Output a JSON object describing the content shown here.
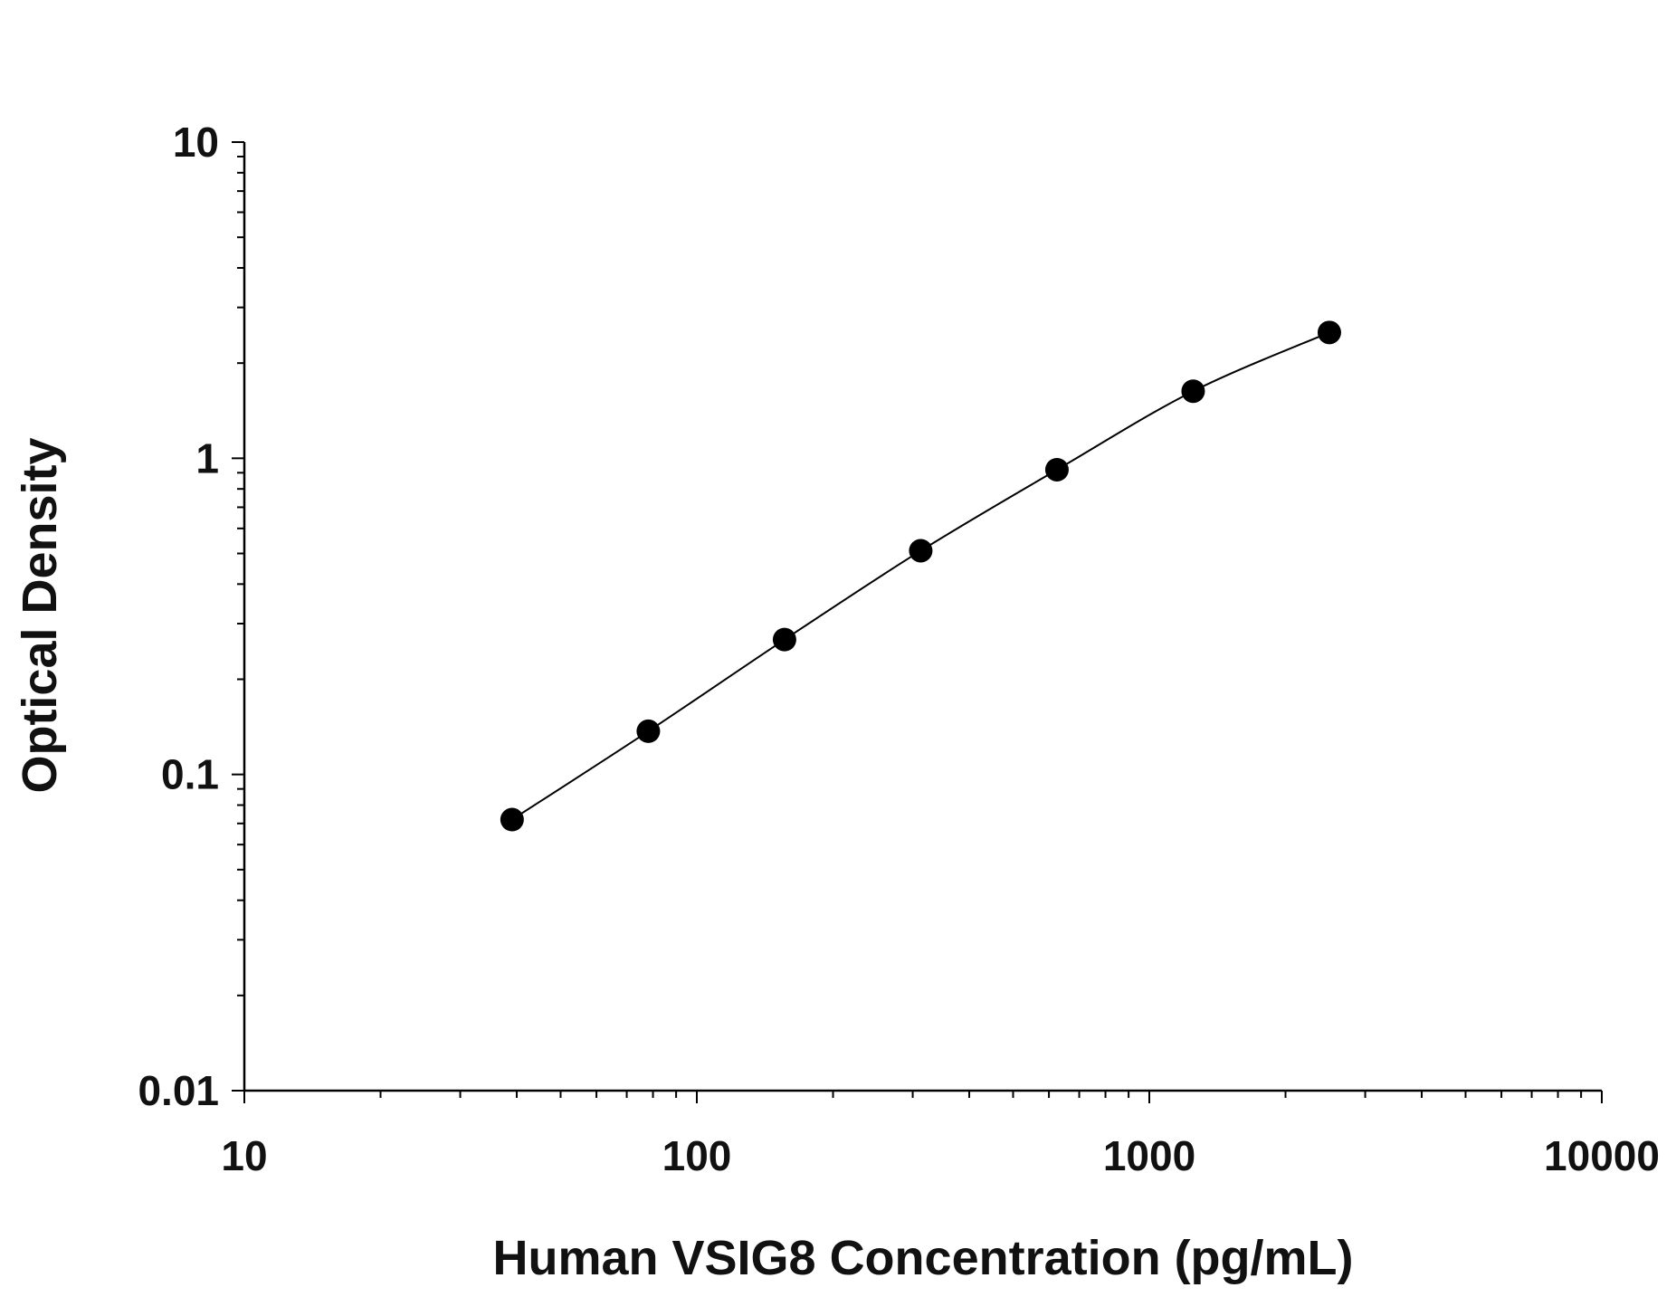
{
  "chart_data": {
    "type": "scatter",
    "title": "",
    "xlabel": "Human VSIG8 Concentration (pg/mL)",
    "ylabel": "Optical Density",
    "xscale": "log",
    "yscale": "log",
    "xlim": [
      10,
      10000
    ],
    "ylim": [
      0.01,
      10
    ],
    "grid": false,
    "x_ticks": [
      "10",
      "100",
      "1000",
      "10000"
    ],
    "y_ticks": [
      "0.01",
      "0.1",
      "1",
      "10"
    ],
    "series": [
      {
        "x": [
          39.06,
          78.13,
          156.25,
          312.5,
          625,
          1250,
          2500
        ],
        "y": [
          0.072,
          0.137,
          0.267,
          0.51,
          0.92,
          1.63,
          2.5
        ],
        "marker": "filled-circle",
        "fit_line": true,
        "color": "#000000"
      }
    ]
  }
}
